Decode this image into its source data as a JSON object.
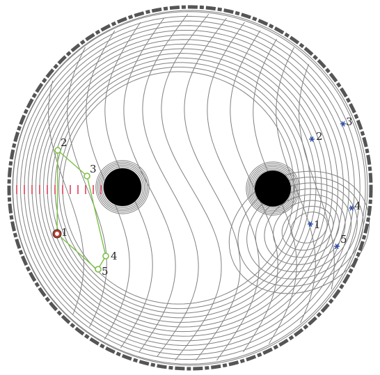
{
  "colors": {
    "contour": "#808080",
    "boundary": "#555555",
    "path": "#7bc043",
    "marker_fill": "#c0392b",
    "scale": "#e0405a",
    "star": "#2a4aa8",
    "obstacle": "#000000"
  },
  "path_labels": [
    "1",
    "2",
    "3",
    "4",
    "5"
  ],
  "star_labels": [
    "1",
    "2",
    "3",
    "4",
    "5"
  ]
}
